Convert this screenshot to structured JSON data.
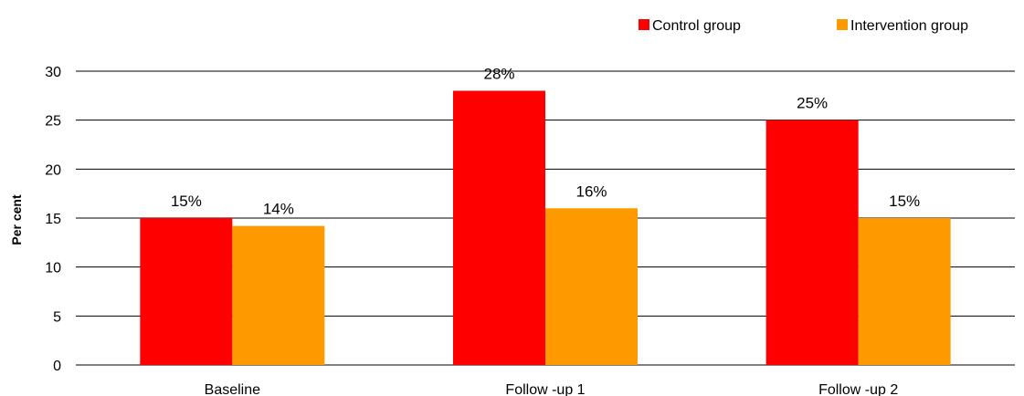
{
  "chart_data": {
    "type": "bar",
    "title": "",
    "xlabel": "",
    "ylabel": "Per cent",
    "ylim": [
      0,
      30
    ],
    "yticks": [
      0,
      5,
      10,
      15,
      20,
      25,
      30
    ],
    "grid": true,
    "legend_position": "top-right",
    "categories": [
      "Baseline",
      "Follow -up 1",
      "Follow -up 2"
    ],
    "series": [
      {
        "name": "Control group",
        "color": "#ff0000",
        "values": [
          15,
          28,
          25
        ],
        "labels": [
          "15%",
          "28%",
          "25%"
        ]
      },
      {
        "name": "Intervention group",
        "color": "#ff9900",
        "values": [
          14.2,
          16,
          15
        ],
        "labels": [
          "14%",
          "16%",
          "15%"
        ]
      }
    ]
  }
}
